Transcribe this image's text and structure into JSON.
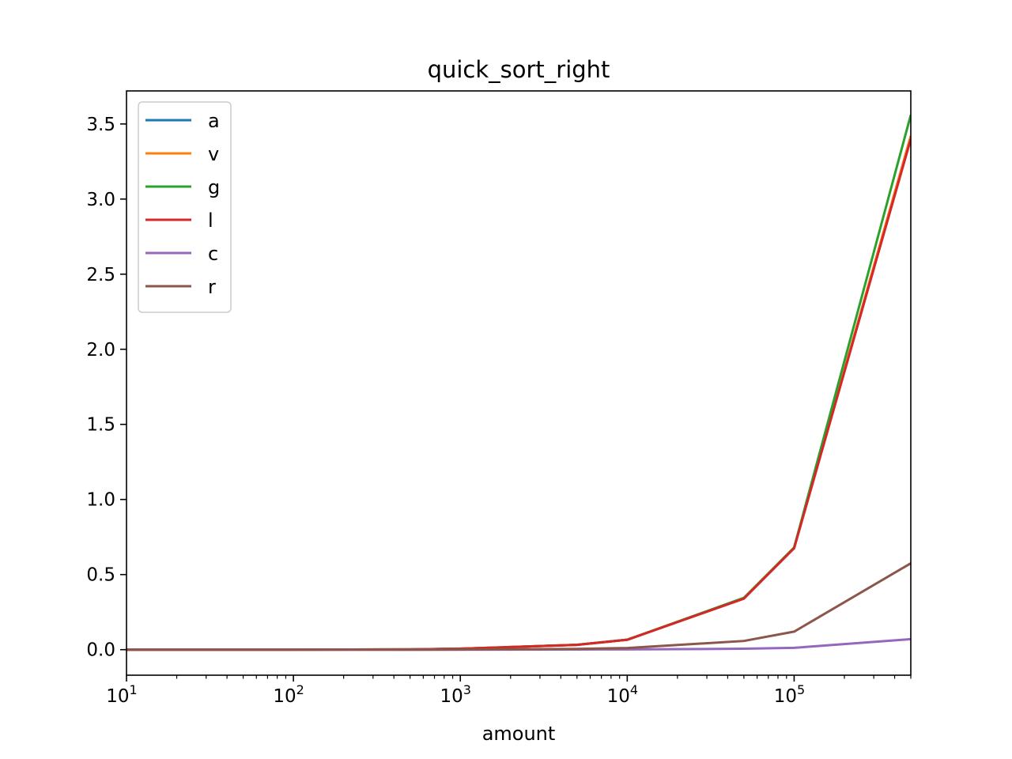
{
  "chart_data": {
    "type": "line",
    "title": "quick_sort_right",
    "xlabel": "amount",
    "ylabel": "",
    "xscale": "log",
    "xlim": [
      10,
      500000
    ],
    "ylim": [
      -0.17,
      3.72
    ],
    "x_ticks": [
      {
        "value": 10,
        "base": "10",
        "exp": "1"
      },
      {
        "value": 100,
        "base": "10",
        "exp": "2"
      },
      {
        "value": 1000,
        "base": "10",
        "exp": "3"
      },
      {
        "value": 10000,
        "base": "10",
        "exp": "4"
      },
      {
        "value": 100000,
        "base": "10",
        "exp": "5"
      }
    ],
    "y_ticks": [
      {
        "value": 0.0,
        "label": "0.0"
      },
      {
        "value": 0.5,
        "label": "0.5"
      },
      {
        "value": 1.0,
        "label": "1.0"
      },
      {
        "value": 1.5,
        "label": "1.5"
      },
      {
        "value": 2.0,
        "label": "2.0"
      },
      {
        "value": 2.5,
        "label": "2.5"
      },
      {
        "value": 3.0,
        "label": "3.0"
      },
      {
        "value": 3.5,
        "label": "3.5"
      }
    ],
    "legend_position": "upper-left",
    "grid": false,
    "x": [
      10,
      50,
      100,
      500,
      1000,
      5000,
      10000,
      50000,
      100000,
      500000
    ],
    "series": [
      {
        "name": "a",
        "color": "#1f77b4",
        "values": [
          0.0,
          0.0,
          0.0,
          0.002,
          0.006,
          0.032,
          0.066,
          0.34,
          0.68,
          3.42
        ]
      },
      {
        "name": "v",
        "color": "#ff7f0e",
        "values": [
          0.0,
          0.0,
          0.0,
          0.002,
          0.006,
          0.032,
          0.066,
          0.34,
          0.68,
          3.42
        ]
      },
      {
        "name": "g",
        "color": "#2ca02c",
        "values": [
          0.0,
          0.0,
          0.0,
          0.002,
          0.006,
          0.033,
          0.066,
          0.345,
          0.68,
          3.56
        ]
      },
      {
        "name": "l",
        "color": "#d62728",
        "values": [
          0.0,
          0.0,
          0.0,
          0.002,
          0.006,
          0.032,
          0.066,
          0.34,
          0.675,
          3.4
        ]
      },
      {
        "name": "c",
        "color": "#9467bd",
        "values": [
          0.0,
          0.0,
          0.0,
          0.0,
          0.0,
          0.001,
          0.002,
          0.006,
          0.012,
          0.07
        ]
      },
      {
        "name": "r",
        "color": "#8c564b",
        "values": [
          0.0,
          0.0,
          0.0,
          0.0,
          0.001,
          0.005,
          0.011,
          0.058,
          0.12,
          0.575
        ]
      }
    ]
  }
}
